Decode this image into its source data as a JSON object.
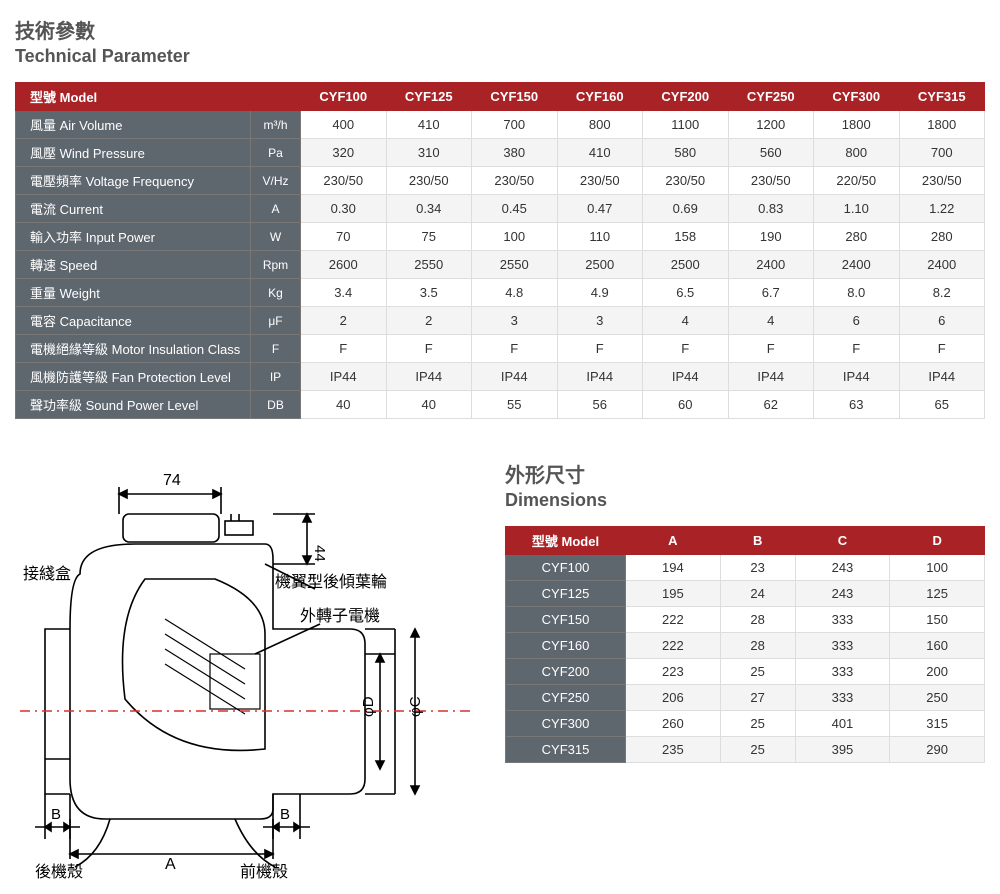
{
  "titles": {
    "tech_cn": "技術參數",
    "tech_en": "Technical Parameter",
    "dim_cn": "外形尺寸",
    "dim_en": "Dimensions"
  },
  "colors": {
    "header_red": "#a82226",
    "row_label_grey": "#5e666e",
    "border": "#dddddd",
    "zebra": "#f4f4f4",
    "text": "#333333",
    "title_text": "#555555"
  },
  "param_table": {
    "model_label": "型號 Model",
    "models": [
      "CYF100",
      "CYF125",
      "CYF150",
      "CYF160",
      "CYF200",
      "CYF250",
      "CYF300",
      "CYF315"
    ],
    "rows": [
      {
        "label": "風量 Air Volume",
        "unit": "m³/h",
        "values": [
          "400",
          "410",
          "700",
          "800",
          "1100",
          "1200",
          "1800",
          "1800"
        ]
      },
      {
        "label": "風壓 Wind Pressure",
        "unit": "Pa",
        "values": [
          "320",
          "310",
          "380",
          "410",
          "580",
          "560",
          "800",
          "700"
        ]
      },
      {
        "label": "電壓頻率 Voltage Frequency",
        "unit": "V/Hz",
        "values": [
          "230/50",
          "230/50",
          "230/50",
          "230/50",
          "230/50",
          "230/50",
          "220/50",
          "230/50"
        ]
      },
      {
        "label": "電流 Current",
        "unit": "A",
        "values": [
          "0.30",
          "0.34",
          "0.45",
          "0.47",
          "0.69",
          "0.83",
          "1.10",
          "1.22"
        ]
      },
      {
        "label": "輸入功率 Input Power",
        "unit": "W",
        "values": [
          "70",
          "75",
          "100",
          "110",
          "158",
          "190",
          "280",
          "280"
        ]
      },
      {
        "label": "轉速 Speed",
        "unit": "Rpm",
        "values": [
          "2600",
          "2550",
          "2550",
          "2500",
          "2500",
          "2400",
          "2400",
          "2400"
        ]
      },
      {
        "label": "重量 Weight",
        "unit": "Kg",
        "values": [
          "3.4",
          "3.5",
          "4.8",
          "4.9",
          "6.5",
          "6.7",
          "8.0",
          "8.2"
        ]
      },
      {
        "label": "電容 Capacitance",
        "unit": "μF",
        "values": [
          "2",
          "2",
          "3",
          "3",
          "4",
          "4",
          "6",
          "6"
        ]
      },
      {
        "label": "電機絕緣等級 Motor Insulation Class",
        "unit": "F",
        "values": [
          "F",
          "F",
          "F",
          "F",
          "F",
          "F",
          "F",
          "F"
        ]
      },
      {
        "label": "風機防護等級 Fan Protection Level",
        "unit": "IP",
        "values": [
          "IP44",
          "IP44",
          "IP44",
          "IP44",
          "IP44",
          "IP44",
          "IP44",
          "IP44"
        ]
      },
      {
        "label": "聲功率級 Sound Power Level",
        "unit": "DB",
        "values": [
          "40",
          "40",
          "55",
          "56",
          "60",
          "62",
          "63",
          "65"
        ]
      }
    ]
  },
  "dim_table": {
    "model_label": "型號 Model",
    "cols": [
      "A",
      "B",
      "C",
      "D"
    ],
    "rows": [
      {
        "model": "CYF100",
        "values": [
          "194",
          "23",
          "243",
          "100"
        ]
      },
      {
        "model": "CYF125",
        "values": [
          "195",
          "24",
          "243",
          "125"
        ]
      },
      {
        "model": "CYF150",
        "values": [
          "222",
          "28",
          "333",
          "150"
        ]
      },
      {
        "model": "CYF160",
        "values": [
          "222",
          "28",
          "333",
          "160"
        ]
      },
      {
        "model": "CYF200",
        "values": [
          "223",
          "25",
          "333",
          "200"
        ]
      },
      {
        "model": "CYF250",
        "values": [
          "206",
          "27",
          "333",
          "250"
        ]
      },
      {
        "model": "CYF300",
        "values": [
          "260",
          "25",
          "401",
          "315"
        ]
      },
      {
        "model": "CYF315",
        "values": [
          "235",
          "25",
          "395",
          "290"
        ]
      }
    ]
  },
  "diagram": {
    "labels": {
      "junction_box": "接綫盒",
      "impeller": "機翼型後傾葉輪",
      "motor": "外轉子電機",
      "rear_shell": "後機殼",
      "front_shell": "前機殼",
      "dim_74": "74",
      "dim_44": "44",
      "dim_A": "A",
      "dim_B": "B",
      "dim_C": "φC",
      "dim_D": "φD"
    },
    "stroke": "#000000",
    "centerline": "#d9302f"
  }
}
